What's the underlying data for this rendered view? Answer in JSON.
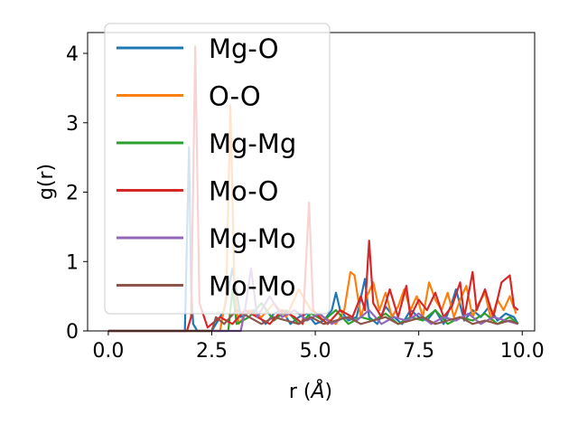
{
  "chart_data": {
    "type": "line",
    "xlabel": "r (",
    "xlabel_unit": "Å",
    "xlabel_close": ")",
    "ylabel": "g(r)",
    "xlim": [
      -0.5,
      10.3
    ],
    "ylim": [
      0,
      4.3
    ],
    "xticks": [
      0.0,
      2.5,
      5.0,
      7.5,
      10.0
    ],
    "xtick_labels": [
      "0.0",
      "2.5",
      "5.0",
      "7.5",
      "10.0"
    ],
    "yticks": [
      0,
      1,
      2,
      3,
      4
    ],
    "ytick_labels": [
      "0",
      "1",
      "2",
      "3",
      "4"
    ],
    "grid": false,
    "legend_position": "upper-left",
    "series": [
      {
        "name": "Mg-O",
        "color": "#1f77b4",
        "x": [
          0,
          1.85,
          1.95,
          2.0,
          2.05,
          2.15,
          2.5,
          2.8,
          3.0,
          3.2,
          3.5,
          3.8,
          4.0,
          4.2,
          4.4,
          4.6,
          4.8,
          5.0,
          5.2,
          5.4,
          5.5,
          5.6,
          5.8,
          6.0,
          6.2,
          6.3,
          6.5,
          6.7,
          6.9,
          7.1,
          7.3,
          7.5,
          7.7,
          7.9,
          8.1,
          8.3,
          8.4,
          8.6,
          8.8,
          9.0,
          9.2,
          9.4,
          9.6,
          9.8,
          9.9
        ],
        "y": [
          0,
          0,
          2.65,
          0.6,
          0.1,
          0,
          0,
          0.3,
          0.9,
          0.2,
          0.3,
          0.1,
          0.25,
          0.3,
          0.1,
          0.2,
          0.25,
          0.1,
          0.15,
          0.3,
          0.55,
          0.3,
          0.15,
          0.2,
          0.75,
          0.2,
          0.1,
          0.35,
          0.2,
          0.1,
          0.3,
          0.2,
          0.15,
          0.3,
          0.1,
          0.4,
          0.6,
          0.15,
          0.3,
          0.2,
          0.35,
          0.15,
          0.25,
          0.2,
          0.1
        ]
      },
      {
        "name": "O-O",
        "color": "#ff7f0e",
        "x": [
          0,
          2.7,
          2.85,
          2.95,
          3.05,
          3.15,
          3.4,
          3.7,
          4.0,
          4.3,
          4.6,
          4.9,
          5.2,
          5.5,
          5.7,
          5.85,
          5.95,
          6.1,
          6.25,
          6.4,
          6.55,
          6.7,
          6.85,
          7.0,
          7.15,
          7.3,
          7.45,
          7.6,
          7.75,
          7.9,
          8.05,
          8.2,
          8.35,
          8.5,
          8.65,
          8.8,
          8.95,
          9.1,
          9.25,
          9.4,
          9.55,
          9.7,
          9.85
        ],
        "y": [
          0,
          0,
          0.5,
          3.25,
          0.6,
          0.1,
          0.3,
          0.2,
          0.4,
          0.2,
          0.6,
          0.3,
          0.2,
          0.1,
          0.3,
          0.85,
          0.8,
          0.2,
          0.5,
          0.7,
          0.3,
          0.55,
          0.2,
          0.35,
          0.6,
          0.3,
          0.5,
          0.2,
          0.7,
          0.45,
          0.3,
          0.55,
          0.2,
          0.45,
          0.65,
          0.2,
          0.4,
          0.55,
          0.15,
          0.45,
          0.3,
          0.5,
          0.25
        ]
      },
      {
        "name": "Mg-Mg",
        "color": "#2ca02c",
        "x": [
          0,
          2.9,
          3.0,
          3.1,
          3.4,
          3.7,
          4.0,
          4.3,
          4.6,
          4.9,
          5.2,
          5.5,
          5.8,
          6.1,
          6.4,
          6.7,
          7.0,
          7.3,
          7.6,
          7.9,
          8.2,
          8.5,
          8.8,
          9.1,
          9.4,
          9.7,
          9.9
        ],
        "y": [
          0,
          0,
          0.6,
          0.1,
          0.2,
          0.4,
          0.15,
          0.3,
          0.1,
          0.25,
          0.15,
          0.3,
          0.1,
          0.2,
          0.15,
          0.25,
          0.1,
          0.2,
          0.15,
          0.3,
          0.1,
          0.2,
          0.15,
          0.25,
          0.1,
          0.2,
          0.1
        ]
      },
      {
        "name": "Mo-O",
        "color": "#d62728",
        "x": [
          0,
          1.9,
          2.0,
          2.1,
          2.2,
          2.4,
          2.7,
          3.0,
          3.3,
          3.6,
          3.9,
          4.2,
          4.5,
          4.7,
          4.85,
          4.95,
          5.1,
          5.3,
          5.6,
          5.9,
          6.1,
          6.2,
          6.3,
          6.4,
          6.6,
          6.8,
          7.0,
          7.2,
          7.3,
          7.5,
          7.7,
          7.9,
          8.1,
          8.3,
          8.5,
          8.6,
          8.8,
          8.9,
          9.1,
          9.3,
          9.5,
          9.7,
          9.8,
          9.9
        ],
        "y": [
          0,
          0,
          0.2,
          4.1,
          0.4,
          0.05,
          0.2,
          0.1,
          0.3,
          0.2,
          0.1,
          0.3,
          0.2,
          0.1,
          1.85,
          0.3,
          0.2,
          0.1,
          0.3,
          0.2,
          0.5,
          0.3,
          1.3,
          0.4,
          0.2,
          0.6,
          0.2,
          0.65,
          0.2,
          0.45,
          0.3,
          0.55,
          0.2,
          0.35,
          0.7,
          0.2,
          0.85,
          0.3,
          0.6,
          0.2,
          0.7,
          0.8,
          0.35,
          0.3
        ]
      },
      {
        "name": "Mg-Mo",
        "color": "#9467bd",
        "x": [
          0,
          3.2,
          3.3,
          3.45,
          3.6,
          3.9,
          4.2,
          4.5,
          4.8,
          5.1,
          5.4,
          5.7,
          6.0,
          6.3,
          6.6,
          6.9,
          7.2,
          7.5,
          7.8,
          8.1,
          8.4,
          8.7,
          9.0,
          9.3,
          9.6,
          9.9
        ],
        "y": [
          0,
          0,
          0.3,
          0.9,
          0.2,
          0.5,
          0.2,
          0.3,
          0.15,
          0.25,
          0.1,
          0.2,
          0.15,
          0.3,
          0.1,
          0.2,
          0.15,
          0.25,
          0.1,
          0.2,
          0.15,
          0.25,
          0.1,
          0.2,
          0.15,
          0.1
        ]
      },
      {
        "name": "Mo-Mo",
        "color": "#8c564b",
        "x": [
          0,
          2.5,
          2.6,
          2.8,
          3.1,
          3.4,
          3.7,
          4.0,
          4.3,
          4.6,
          4.9,
          5.2,
          5.5,
          5.8,
          6.1,
          6.4,
          6.7,
          7.0,
          7.3,
          7.6,
          7.9,
          8.2,
          8.5,
          8.8,
          9.1,
          9.4,
          9.7,
          9.9
        ],
        "y": [
          0,
          0,
          0.2,
          0.1,
          0.3,
          0.2,
          0.1,
          0.2,
          0.15,
          0.1,
          0.2,
          0.1,
          0.15,
          0.2,
          0.1,
          0.15,
          0.2,
          0.1,
          0.15,
          0.2,
          0.1,
          0.15,
          0.2,
          0.1,
          0.15,
          0.1,
          0.15,
          0.1
        ]
      }
    ]
  }
}
